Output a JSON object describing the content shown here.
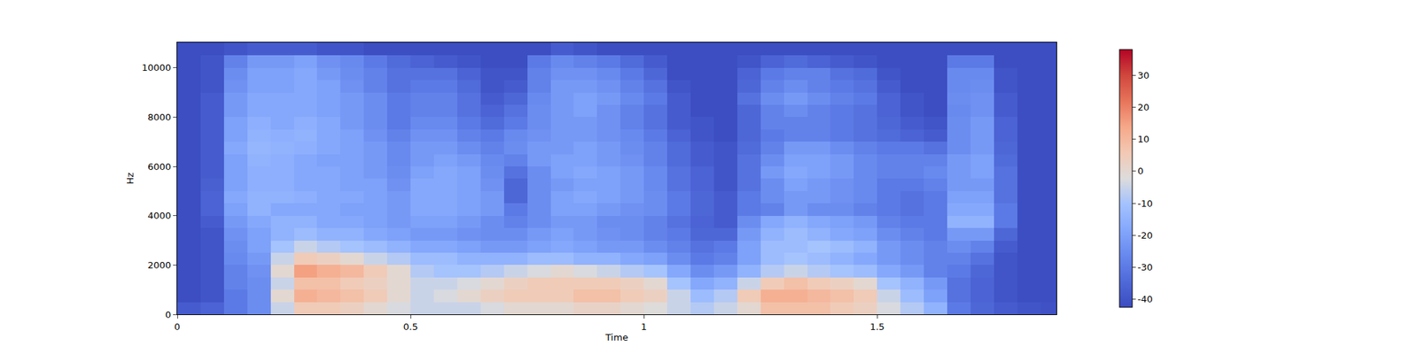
{
  "chart_data": {
    "type": "heatmap",
    "xlabel": "Time",
    "ylabel": "Hz",
    "x": [
      0,
      0.05,
      0.1,
      0.15,
      0.2,
      0.25,
      0.3,
      0.35,
      0.4,
      0.45,
      0.5,
      0.55,
      0.6,
      0.65,
      0.7,
      0.75,
      0.8,
      0.85,
      0.9,
      0.95,
      1.0,
      1.05,
      1.1,
      1.15,
      1.2,
      1.25,
      1.3,
      1.35,
      1.4,
      1.45,
      1.5,
      1.55,
      1.6,
      1.65,
      1.7,
      1.75,
      1.8,
      1.85,
      1.884
    ],
    "y": [
      0,
      500,
      1000,
      1500,
      2000,
      2500,
      3000,
      3500,
      4000,
      4500,
      5000,
      5500,
      6000,
      6500,
      7000,
      7500,
      8000,
      8500,
      9000,
      9500,
      10000,
      10500,
      11025
    ],
    "cells": [
      [
        -38,
        -36,
        -30,
        -25,
        -5,
        5,
        5,
        3,
        0,
        -3,
        -5,
        -5,
        -5,
        -3,
        0,
        0,
        0,
        2,
        2,
        0,
        -2,
        -5,
        -8,
        -5,
        0,
        8,
        8,
        8,
        5,
        3,
        -3,
        -8,
        -15,
        -30,
        -35,
        -38,
        -40,
        -41
      ],
      [
        -42,
        -40,
        -30,
        -25,
        0,
        12,
        10,
        8,
        5,
        0,
        -5,
        -3,
        0,
        3,
        5,
        5,
        5,
        8,
        8,
        5,
        3,
        -5,
        -12,
        -8,
        5,
        12,
        12,
        10,
        8,
        5,
        -5,
        -12,
        -20,
        -32,
        -36,
        -40,
        -42,
        -42
      ],
      [
        -42,
        -40,
        -28,
        -25,
        -5,
        8,
        8,
        5,
        3,
        0,
        -5,
        -5,
        -3,
        0,
        3,
        5,
        5,
        5,
        5,
        3,
        0,
        -10,
        -18,
        -15,
        -5,
        5,
        8,
        5,
        3,
        0,
        -10,
        -15,
        -22,
        -32,
        -36,
        -40,
        -42,
        -42
      ],
      [
        -42,
        -40,
        -28,
        -24,
        0,
        15,
        12,
        10,
        5,
        0,
        -8,
        -10,
        -10,
        -8,
        -5,
        -3,
        0,
        -3,
        -5,
        -8,
        -10,
        -18,
        -25,
        -22,
        -15,
        -8,
        -5,
        -8,
        -10,
        -12,
        -18,
        -22,
        -28,
        -30,
        -35,
        -40,
        -42,
        -42
      ],
      [
        -42,
        -40,
        -26,
        -22,
        -5,
        5,
        3,
        0,
        -5,
        -8,
        -12,
        -12,
        -15,
        -15,
        -15,
        -12,
        -12,
        -15,
        -15,
        -18,
        -20,
        -25,
        -30,
        -28,
        -20,
        -12,
        -10,
        -12,
        -15,
        -18,
        -22,
        -25,
        -28,
        -28,
        -32,
        -40,
        -42,
        -42
      ],
      [
        -42,
        -40,
        -25,
        -20,
        -10,
        -5,
        -8,
        -10,
        -12,
        -15,
        -18,
        -18,
        -20,
        -22,
        -22,
        -20,
        -18,
        -20,
        -22,
        -22,
        -25,
        -28,
        -32,
        -30,
        -20,
        -12,
        -12,
        -10,
        -12,
        -15,
        -22,
        -25,
        -28,
        -25,
        -28,
        -38,
        -42,
        -42
      ],
      [
        -42,
        -40,
        -24,
        -20,
        -15,
        -12,
        -15,
        -15,
        -18,
        -20,
        -22,
        -22,
        -24,
        -25,
        -25,
        -22,
        -20,
        -22,
        -24,
        -25,
        -28,
        -30,
        -35,
        -35,
        -22,
        -15,
        -12,
        -15,
        -18,
        -20,
        -25,
        -28,
        -30,
        -22,
        -22,
        -35,
        -42,
        -42
      ],
      [
        -42,
        -38,
        -22,
        -18,
        -15,
        -15,
        -18,
        -18,
        -20,
        -22,
        -20,
        -20,
        -22,
        -25,
        -28,
        -25,
        -22,
        -22,
        -25,
        -25,
        -28,
        -32,
        -36,
        -38,
        -25,
        -18,
        -15,
        -18,
        -20,
        -22,
        -28,
        -30,
        -30,
        -15,
        -15,
        -30,
        -42,
        -42
      ],
      [
        -42,
        -36,
        -20,
        -15,
        -18,
        -18,
        -18,
        -20,
        -20,
        -22,
        -18,
        -18,
        -20,
        -22,
        -30,
        -25,
        -20,
        -20,
        -22,
        -24,
        -25,
        -30,
        -35,
        -38,
        -30,
        -28,
        -22,
        -25,
        -25,
        -28,
        -30,
        -32,
        -30,
        -18,
        -18,
        -30,
        -42,
        -42
      ],
      [
        -42,
        -36,
        -18,
        -15,
        -15,
        -16,
        -18,
        -18,
        -20,
        -22,
        -18,
        -18,
        -20,
        -22,
        -35,
        -25,
        -20,
        -18,
        -20,
        -22,
        -25,
        -30,
        -35,
        -38,
        -30,
        -25,
        -22,
        -22,
        -24,
        -26,
        -30,
        -32,
        -30,
        -20,
        -20,
        -32,
        -42,
        -42
      ],
      [
        -42,
        -37,
        -20,
        -16,
        -16,
        -18,
        -18,
        -20,
        -20,
        -24,
        -18,
        -18,
        -20,
        -24,
        -35,
        -25,
        -22,
        -20,
        -20,
        -22,
        -26,
        -32,
        -36,
        -40,
        -32,
        -25,
        -20,
        -22,
        -24,
        -26,
        -30,
        -30,
        -28,
        -22,
        -22,
        -32,
        -42,
        -42
      ],
      [
        -42,
        -38,
        -20,
        -16,
        -16,
        -18,
        -18,
        -20,
        -22,
        -25,
        -20,
        -18,
        -20,
        -25,
        -32,
        -25,
        -20,
        -18,
        -20,
        -22,
        -26,
        -32,
        -36,
        -40,
        -32,
        -22,
        -18,
        -20,
        -22,
        -26,
        -28,
        -28,
        -26,
        -22,
        -20,
        -32,
        -42,
        -42
      ],
      [
        -42,
        -38,
        -20,
        -15,
        -16,
        -18,
        -20,
        -20,
        -22,
        -26,
        -22,
        -20,
        -22,
        -26,
        -28,
        -22,
        -20,
        -20,
        -22,
        -24,
        -28,
        -34,
        -38,
        -40,
        -32,
        -25,
        -20,
        -20,
        -22,
        -26,
        -28,
        -28,
        -28,
        -22,
        -20,
        -34,
        -42,
        -42
      ],
      [
        -42,
        -38,
        -18,
        -14,
        -15,
        -16,
        -18,
        -20,
        -22,
        -26,
        -22,
        -22,
        -25,
        -28,
        -25,
        -22,
        -22,
        -20,
        -22,
        -25,
        -28,
        -34,
        -38,
        -40,
        -34,
        -28,
        -22,
        -22,
        -25,
        -28,
        -30,
        -30,
        -32,
        -25,
        -22,
        -35,
        -42,
        -42
      ],
      [
        -42,
        -38,
        -20,
        -15,
        -16,
        -15,
        -18,
        -20,
        -24,
        -28,
        -24,
        -24,
        -28,
        -30,
        -26,
        -24,
        -22,
        -22,
        -24,
        -26,
        -30,
        -36,
        -40,
        -42,
        -35,
        -30,
        -28,
        -28,
        -30,
        -32,
        -34,
        -36,
        -38,
        -25,
        -22,
        -36,
        -42,
        -42
      ],
      [
        -42,
        -38,
        -20,
        -16,
        -18,
        -16,
        -18,
        -22,
        -25,
        -30,
        -26,
        -26,
        -30,
        -34,
        -30,
        -25,
        -22,
        -22,
        -24,
        -28,
        -32,
        -38,
        -40,
        -42,
        -35,
        -28,
        -28,
        -28,
        -30,
        -32,
        -35,
        -38,
        -40,
        -25,
        -22,
        -36,
        -42,
        -42
      ],
      [
        -42,
        -38,
        -22,
        -18,
        -18,
        -18,
        -20,
        -22,
        -25,
        -30,
        -28,
        -28,
        -32,
        -36,
        -32,
        -25,
        -22,
        -20,
        -24,
        -28,
        -32,
        -38,
        -42,
        -42,
        -35,
        -28,
        -25,
        -28,
        -30,
        -32,
        -36,
        -40,
        -42,
        -26,
        -24,
        -38,
        -42,
        -42
      ],
      [
        -42,
        -38,
        -22,
        -18,
        -18,
        -18,
        -20,
        -22,
        -25,
        -30,
        -28,
        -28,
        -32,
        -38,
        -35,
        -26,
        -22,
        -20,
        -22,
        -26,
        -30,
        -38,
        -42,
        -42,
        -32,
        -25,
        -22,
        -25,
        -28,
        -30,
        -36,
        -40,
        -42,
        -25,
        -24,
        -38,
        -42,
        -42
      ],
      [
        -42,
        -40,
        -24,
        -20,
        -20,
        -18,
        -20,
        -24,
        -28,
        -32,
        -30,
        -30,
        -34,
        -40,
        -38,
        -28,
        -22,
        -22,
        -24,
        -28,
        -32,
        -40,
        -42,
        -42,
        -35,
        -28,
        -25,
        -28,
        -30,
        -32,
        -38,
        -42,
        -42,
        -26,
        -25,
        -40,
        -42,
        -42
      ],
      [
        -42,
        -40,
        -25,
        -20,
        -20,
        -18,
        -22,
        -25,
        -28,
        -32,
        -32,
        -32,
        -36,
        -40,
        -40,
        -28,
        -24,
        -24,
        -26,
        -30,
        -35,
        -42,
        -42,
        -42,
        -36,
        -30,
        -28,
        -28,
        -32,
        -34,
        -40,
        -42,
        -42,
        -26,
        -26,
        -40,
        -42,
        -42
      ],
      [
        -42,
        -40,
        -28,
        -22,
        -22,
        -20,
        -24,
        -26,
        -30,
        -34,
        -36,
        -38,
        -40,
        -42,
        -42,
        -30,
        -26,
        -28,
        -30,
        -34,
        -38,
        -42,
        -42,
        -42,
        -40,
        -36,
        -34,
        -36,
        -38,
        -40,
        -42,
        -42,
        -42,
        -30,
        -30,
        -42,
        -42,
        -42
      ],
      [
        -42,
        -42,
        -40,
        -38,
        -38,
        -38,
        -40,
        -40,
        -42,
        -42,
        -42,
        -42,
        -42,
        -42,
        -42,
        -42,
        -38,
        -40,
        -42,
        -42,
        -42,
        -42,
        -42,
        -42,
        -42,
        -42,
        -42,
        -42,
        -42,
        -42,
        -42,
        -42,
        -42,
        -42,
        -42,
        -42,
        -42,
        -42
      ]
    ],
    "xlim": [
      0,
      1.884
    ],
    "ylim": [
      0,
      11025
    ],
    "xticks": [
      0,
      0.5,
      1,
      1.5
    ],
    "yticks": [
      0,
      2000,
      4000,
      6000,
      8000,
      10000
    ],
    "color_range": [
      -42.5,
      38
    ],
    "color_ticks": [
      -40,
      -30,
      -20,
      -10,
      0,
      10,
      20,
      30
    ]
  }
}
